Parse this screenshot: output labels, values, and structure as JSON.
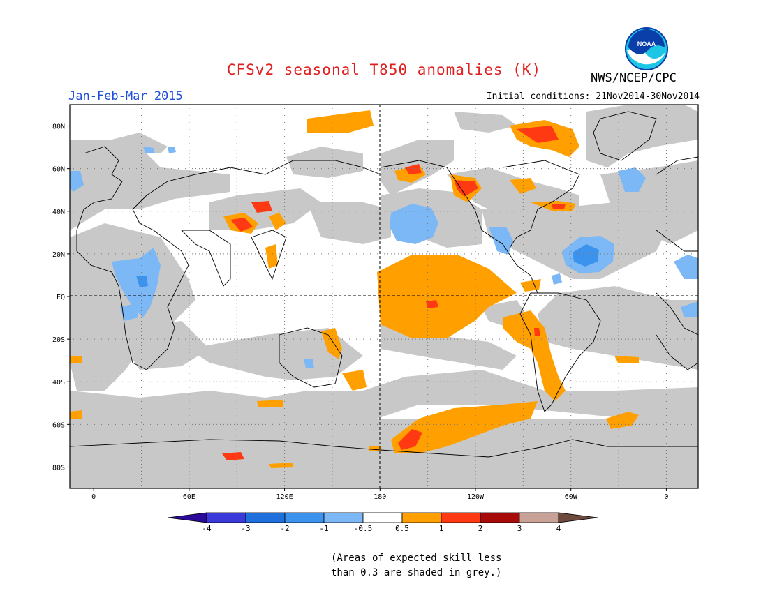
{
  "title": "CFSv2 seasonal T850 anomalies (K)",
  "agency": "NWS/NCEP/CPC",
  "logo_text": "NOAA",
  "period": "Jan-Feb-Mar 2015",
  "initial_conditions": "Initial conditions: 21Nov2014-30Nov2014",
  "lat_labels": [
    "80N",
    "60N",
    "40N",
    "20N",
    "EQ",
    "20S",
    "40S",
    "60S",
    "80S"
  ],
  "lat_values": [
    80,
    60,
    40,
    20,
    0,
    -20,
    -40,
    -60,
    -80
  ],
  "lon_labels": [
    "0",
    "60E",
    "120E",
    "180",
    "120W",
    "60W",
    "0"
  ],
  "lon_values": [
    0,
    60,
    120,
    180,
    240,
    300,
    360
  ],
  "colorbar": {
    "ticks": [
      "-4",
      "-3",
      "-2",
      "-1",
      "-0.5",
      "0.5",
      "1",
      "2",
      "3",
      "4"
    ],
    "colors": [
      "#2b0a9a",
      "#3a3adb",
      "#1f6fdc",
      "#3b93ee",
      "#7db8f6",
      "#ffffff",
      "#ffa000",
      "#ff3a12",
      "#a80a0a",
      "#c8a296",
      "#6e4a3e"
    ]
  },
  "colors": {
    "grey_low_skill": "#c8c8c8",
    "land_outline": "#000000",
    "title": "#e02020",
    "period": "#1f4fd8"
  },
  "caption": [
    "(Areas of expected skill less",
    "than 0.3 are shaded in grey.)"
  ]
}
